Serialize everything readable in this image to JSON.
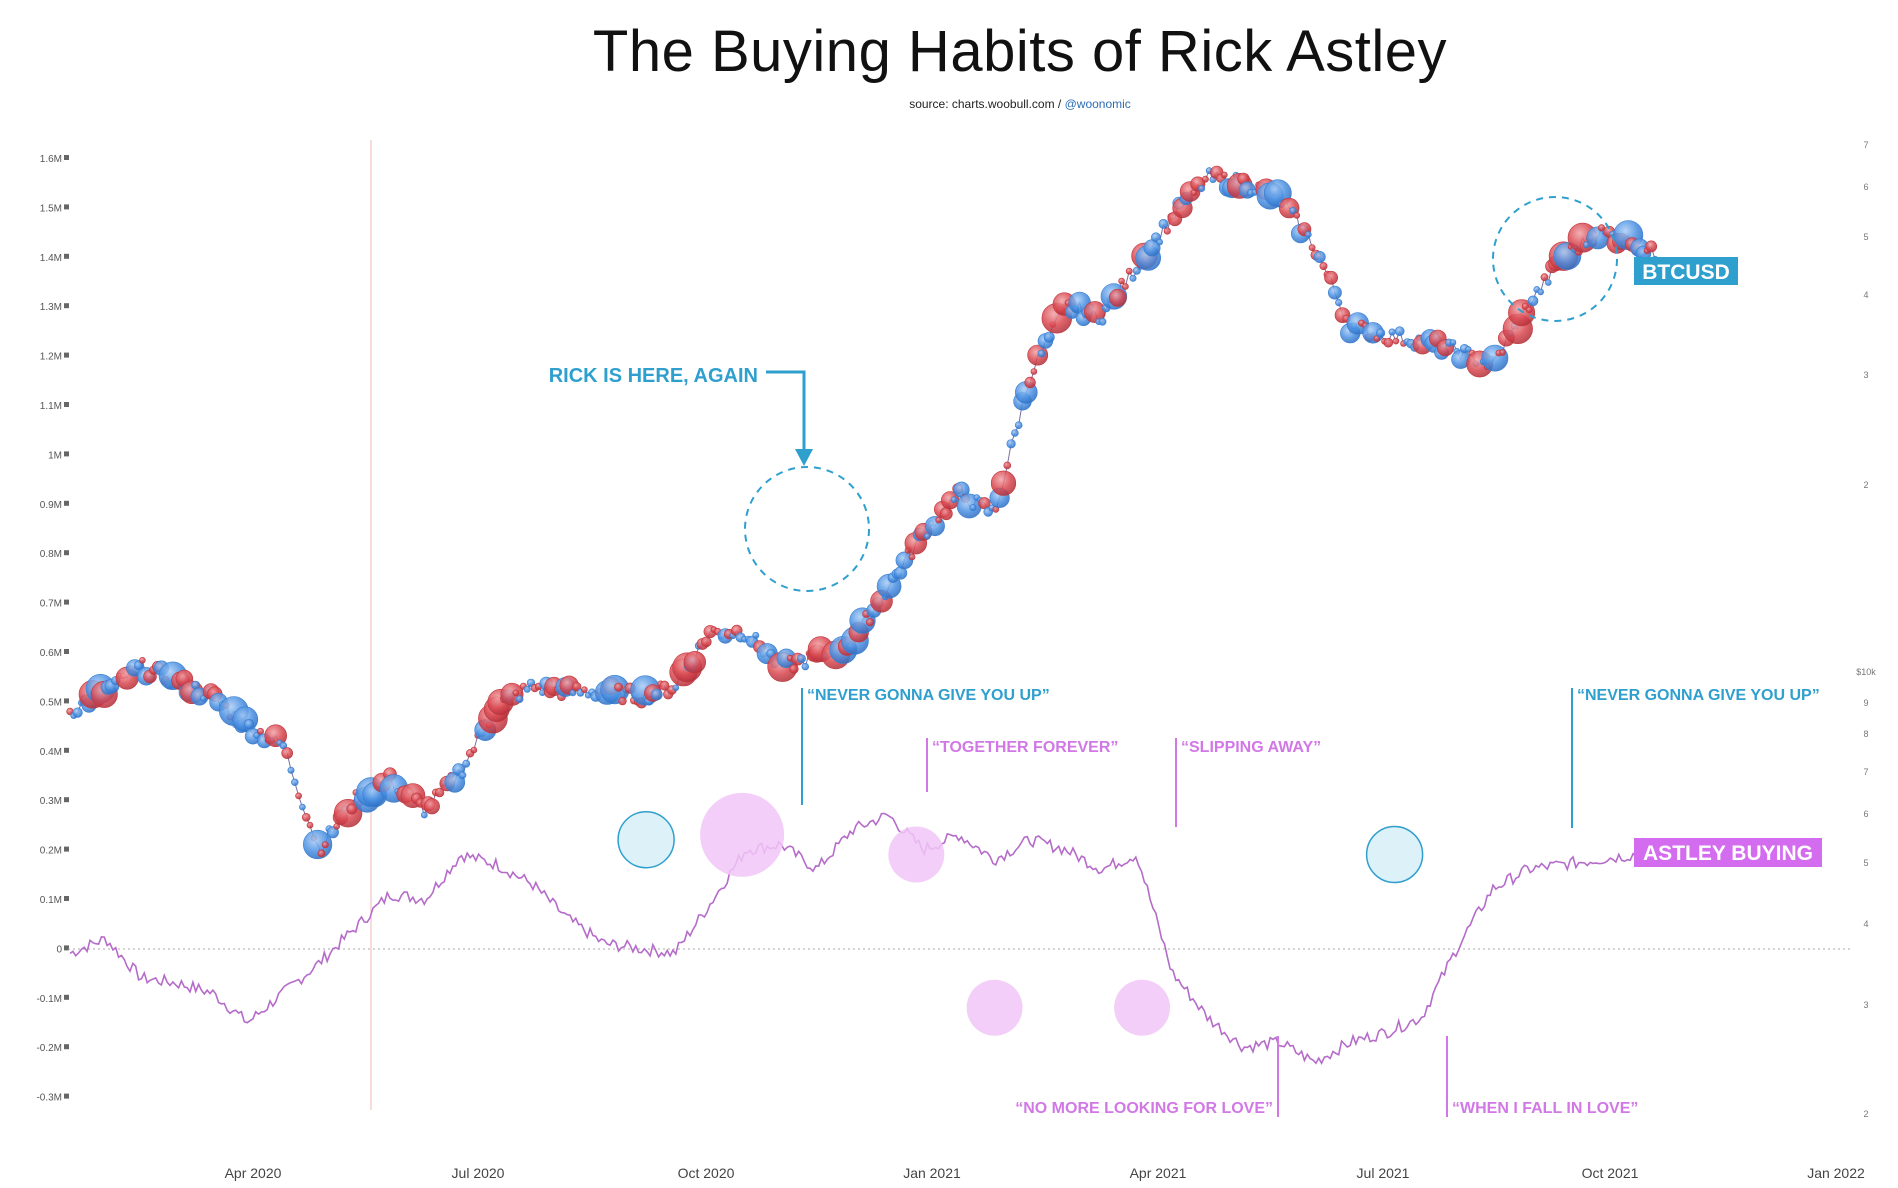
{
  "header": {
    "title": "The Buying Habits of Rick Astley",
    "source_prefix": "source: charts.woobull.com / ",
    "source_handle": "@woonomic"
  },
  "colors": {
    "buy_bubble": "#4a90e2",
    "sell_bubble": "#d9474f",
    "astley_line": "#b56cc9",
    "teal_annotation": "#2f9fce",
    "pink_annotation": "#d178e6",
    "btcusd_badge": "#2f9fce",
    "astley_badge": "#d46cf0"
  },
  "annotations": {
    "rick_here": "RICK IS HERE, AGAIN",
    "btcusd_label": "BTCUSD",
    "astley_label": "ASTLEY BUYING",
    "song_never1": "“NEVER GONNA GIVE YOU UP”",
    "song_together": "“TOGETHER FOREVER”",
    "song_slipping": "“SLIPPING AWAY”",
    "song_never2": "“NEVER GONNA GIVE YOU UP”",
    "song_nomore": "“NO MORE LOOKING FOR LOVE”",
    "song_whenifall": "“WHEN I FALL IN LOVE”"
  },
  "chart_data": {
    "type": "line",
    "title": "The Buying Habits of Rick Astley",
    "x_ticks": [
      "Apr 2020",
      "Jul 2020",
      "Oct 2020",
      "Jan 2021",
      "Apr 2021",
      "Jul 2021",
      "Oct 2021",
      "Jan 2022"
    ],
    "y_left_ticks": [
      "1.6M",
      "1.5M",
      "1.4M",
      "1.3M",
      "1.2M",
      "1.1M",
      "1M",
      "0.9M",
      "0.8M",
      "0.7M",
      "0.6M",
      "0.5M",
      "0.4M",
      "0.3M",
      "0.2M",
      "0.1M",
      "0",
      "-0.1M",
      "-0.2M",
      "-0.3M"
    ],
    "y_left_values": [
      1.6,
      1.5,
      1.4,
      1.3,
      1.2,
      1.1,
      1.0,
      0.9,
      0.8,
      0.7,
      0.6,
      0.5,
      0.4,
      0.3,
      0.2,
      0.1,
      0,
      -0.1,
      -0.2,
      -0.3
    ],
    "y_left_range": [
      -0.3,
      1.6
    ],
    "y_right_upper_ticks": [
      "7",
      "6",
      "5",
      "4",
      "3",
      "2"
    ],
    "y_right_lower_ticks": [
      "$10k",
      "9",
      "8",
      "7",
      "6",
      "5",
      "4",
      "3",
      "2"
    ],
    "log_scale_right": true,
    "series": [
      {
        "name": "BTCUSD",
        "t": [
          0.0,
          0.02,
          0.04,
          0.06,
          0.08,
          0.1,
          0.12,
          0.14,
          0.16,
          0.18,
          0.2,
          0.22,
          0.24,
          0.26,
          0.28,
          0.3,
          0.32,
          0.34,
          0.36,
          0.38,
          0.4,
          0.42,
          0.44,
          0.46,
          0.48,
          0.5,
          0.52,
          0.54,
          0.56,
          0.58,
          0.6,
          0.62,
          0.64,
          0.66,
          0.68,
          0.7,
          0.72,
          0.74,
          0.76,
          0.78,
          0.8,
          0.82,
          0.84,
          0.86,
          0.88,
          0.9
        ],
        "values": [
          0.48,
          0.52,
          0.57,
          0.54,
          0.51,
          0.45,
          0.41,
          0.2,
          0.3,
          0.34,
          0.28,
          0.36,
          0.49,
          0.53,
          0.52,
          0.52,
          0.51,
          0.53,
          0.64,
          0.64,
          0.57,
          0.59,
          0.62,
          0.73,
          0.84,
          0.92,
          0.88,
          1.16,
          1.3,
          1.28,
          1.38,
          1.48,
          1.56,
          1.55,
          1.52,
          1.42,
          1.26,
          1.24,
          1.23,
          1.21,
          1.18,
          1.3,
          1.4,
          1.45,
          1.43,
          1.38
        ]
      },
      {
        "name": "ASTLEY BUYING",
        "t": [
          0.0,
          0.02,
          0.04,
          0.06,
          0.08,
          0.1,
          0.12,
          0.14,
          0.16,
          0.18,
          0.2,
          0.22,
          0.24,
          0.26,
          0.28,
          0.3,
          0.32,
          0.34,
          0.36,
          0.38,
          0.4,
          0.42,
          0.44,
          0.46,
          0.48,
          0.5,
          0.52,
          0.54,
          0.56,
          0.58,
          0.6,
          0.62,
          0.64,
          0.66,
          0.68,
          0.7,
          0.72,
          0.74,
          0.76,
          0.78,
          0.8,
          0.82,
          0.84,
          0.86,
          0.88,
          0.9
        ],
        "values": [
          -0.01,
          0.02,
          -0.06,
          -0.07,
          -0.09,
          -0.15,
          -0.09,
          -0.03,
          0.04,
          0.11,
          0.1,
          0.19,
          0.17,
          0.13,
          0.06,
          0.01,
          0.0,
          -0.01,
          0.09,
          0.2,
          0.21,
          0.16,
          0.24,
          0.27,
          0.2,
          0.23,
          0.18,
          0.22,
          0.2,
          0.16,
          0.19,
          -0.05,
          -0.14,
          -0.2,
          -0.19,
          -0.23,
          -0.19,
          -0.17,
          -0.14,
          0.0,
          0.12,
          0.16,
          0.17,
          0.18,
          0.19,
          0.18
        ]
      }
    ],
    "highlight_circles": [
      {
        "label": "“NEVER GONNA GIVE YOU UP”",
        "t": 0.324,
        "value": 0.22
      },
      {
        "label": "“TOGETHER FOREVER”",
        "t": 0.378,
        "value": 0.23
      },
      {
        "label": "“SLIPPING AWAY”",
        "t": 0.476,
        "value": 0.19
      },
      {
        "label": "“NO MORE LOOKING FOR LOVE”",
        "t": 0.52,
        "value": -0.12
      },
      {
        "label": "“WHEN I FALL IN LOVE”",
        "t": 0.603,
        "value": -0.12
      },
      {
        "label": "“NEVER GONNA GIVE YOU UP”",
        "t": 0.745,
        "value": 0.19
      }
    ]
  }
}
